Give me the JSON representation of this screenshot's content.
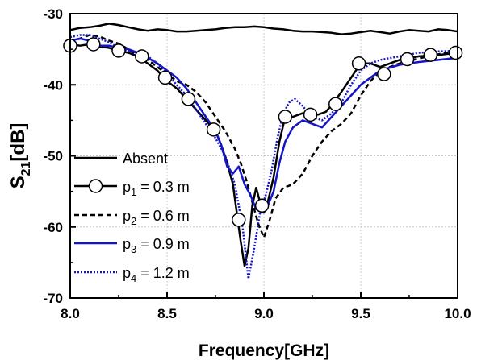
{
  "chart_data": {
    "type": "line",
    "xlabel": "Frequency[GHz]",
    "ylabel": {
      "main": "S",
      "sub": "21",
      "unit": "[dB]"
    },
    "xlim": [
      8.0,
      10.0
    ],
    "ylim": [
      -70,
      -30
    ],
    "xticks": [
      {
        "value": 8.0,
        "label": "8.0"
      },
      {
        "value": 8.5,
        "label": "8.5"
      },
      {
        "value": 9.0,
        "label": "9.0"
      },
      {
        "value": 9.5,
        "label": "9.5"
      },
      {
        "value": 10.0,
        "label": "10.0"
      }
    ],
    "yticks": [
      {
        "value": -30,
        "label": "-30"
      },
      {
        "value": -40,
        "label": "-40"
      },
      {
        "value": -50,
        "label": "-50"
      },
      {
        "value": -60,
        "label": "-60"
      },
      {
        "value": -70,
        "label": "-70"
      }
    ],
    "grid": true,
    "legend_position": "bottom-left",
    "series": [
      {
        "id": "absent",
        "label": {
          "main": "Absent",
          "sub": "",
          "rest": ""
        },
        "color": "#000000",
        "dash": "none",
        "width": 2.5,
        "marker": "none",
        "x": [
          8.0,
          8.05,
          8.1,
          8.15,
          8.2,
          8.25,
          8.3,
          8.35,
          8.4,
          8.45,
          8.5,
          8.55,
          8.6,
          8.65,
          8.7,
          8.75,
          8.8,
          8.85,
          8.9,
          8.95,
          9.0,
          9.05,
          9.1,
          9.15,
          9.2,
          9.25,
          9.3,
          9.35,
          9.4,
          9.45,
          9.5,
          9.55,
          9.6,
          9.65,
          9.7,
          9.75,
          9.8,
          9.85,
          9.9,
          9.95,
          10.0
        ],
        "y": [
          -32.3,
          -32.0,
          -31.9,
          -31.7,
          -31.4,
          -31.6,
          -31.9,
          -32.2,
          -32.4,
          -32.2,
          -32.3,
          -32.5,
          -32.5,
          -32.4,
          -32.3,
          -32.2,
          -32.0,
          -31.9,
          -31.9,
          -31.8,
          -31.9,
          -32.1,
          -32.2,
          -32.4,
          -32.5,
          -32.5,
          -32.6,
          -32.7,
          -32.9,
          -32.8,
          -32.6,
          -32.4,
          -32.6,
          -32.8,
          -32.5,
          -32.3,
          -32.4,
          -32.5,
          -32.2,
          -32.3,
          -32.5
        ]
      },
      {
        "id": "p1",
        "label": {
          "main": "p",
          "sub": "1",
          "rest": " = 0.3 m"
        },
        "color": "#000000",
        "dash": "none",
        "width": 2.5,
        "marker": "circle",
        "x": [
          8.0,
          8.05,
          8.1,
          8.15,
          8.2,
          8.25,
          8.3,
          8.35,
          8.4,
          8.45,
          8.5,
          8.55,
          8.6,
          8.65,
          8.7,
          8.75,
          8.78,
          8.81,
          8.84,
          8.86,
          8.88,
          8.9,
          8.92,
          8.94,
          8.96,
          8.98,
          9.0,
          9.02,
          9.05,
          9.08,
          9.11,
          9.15,
          9.2,
          9.24,
          9.28,
          9.32,
          9.36,
          9.4,
          9.45,
          9.5,
          9.55,
          9.6,
          9.7,
          9.8,
          9.9,
          10.0
        ],
        "y": [
          -34.3,
          -34.5,
          -34.3,
          -34.6,
          -34.8,
          -35.2,
          -35.5,
          -36.0,
          -37.0,
          -38.0,
          -39.5,
          -40.5,
          -42.0,
          -43.5,
          -45.0,
          -46.5,
          -48.5,
          -51.0,
          -54.0,
          -58.0,
          -62.0,
          -65.5,
          -63.0,
          -57.0,
          -54.5,
          -56.5,
          -58.0,
          -56.5,
          -53.0,
          -48.0,
          -44.5,
          -44.5,
          -44.0,
          -44.0,
          -44.2,
          -43.8,
          -42.5,
          -41.0,
          -39.0,
          -37.0,
          -37.0,
          -37.5,
          -36.5,
          -36.0,
          -35.8,
          -35.5
        ],
        "markers": [
          [
            8.0,
            -34.5
          ],
          [
            8.12,
            -34.3
          ],
          [
            8.25,
            -35.2
          ],
          [
            8.37,
            -36.0
          ],
          [
            8.49,
            -39.0
          ],
          [
            8.61,
            -42.0
          ],
          [
            8.74,
            -46.3
          ],
          [
            8.87,
            -59.0
          ],
          [
            8.99,
            -57.0
          ],
          [
            9.11,
            -44.5
          ],
          [
            9.24,
            -44.2
          ],
          [
            9.37,
            -42.7
          ],
          [
            9.49,
            -37.0
          ],
          [
            9.62,
            -38.5
          ],
          [
            9.74,
            -36.4
          ],
          [
            9.86,
            -35.8
          ],
          [
            9.99,
            -35.5
          ]
        ]
      },
      {
        "id": "p2",
        "label": {
          "main": "p",
          "sub": "2",
          "rest": " = 0.6 m"
        },
        "color": "#000000",
        "dash": "6,4",
        "width": 2.5,
        "marker": "none",
        "x": [
          8.0,
          8.05,
          8.1,
          8.15,
          8.2,
          8.25,
          8.3,
          8.35,
          8.4,
          8.45,
          8.5,
          8.55,
          8.6,
          8.65,
          8.7,
          8.75,
          8.8,
          8.85,
          8.88,
          8.91,
          8.94,
          8.97,
          9.0,
          9.03,
          9.06,
          9.1,
          9.15,
          9.2,
          9.25,
          9.3,
          9.35,
          9.4,
          9.45,
          9.5,
          9.55,
          9.6,
          9.7,
          9.8,
          9.9,
          10.0
        ],
        "y": [
          -34.0,
          -33.5,
          -33.0,
          -33.2,
          -33.8,
          -34.2,
          -35.0,
          -36.0,
          -36.5,
          -37.5,
          -38.5,
          -39.5,
          -40.0,
          -41.0,
          -42.5,
          -44.5,
          -46.5,
          -49.0,
          -51.0,
          -53.5,
          -56.5,
          -59.5,
          -61.5,
          -59.0,
          -56.0,
          -54.5,
          -54.0,
          -52.5,
          -50.0,
          -48.0,
          -46.5,
          -45.5,
          -44.0,
          -41.5,
          -39.5,
          -38.0,
          -37.0,
          -36.3,
          -35.7,
          -35.2
        ]
      },
      {
        "id": "p3",
        "label": {
          "main": "p",
          "sub": "3",
          "rest": " = 0.9 m"
        },
        "color": "#1515c8",
        "dash": "none",
        "width": 2.5,
        "marker": "none",
        "x": [
          8.0,
          8.05,
          8.1,
          8.15,
          8.2,
          8.25,
          8.3,
          8.35,
          8.4,
          8.45,
          8.5,
          8.55,
          8.6,
          8.65,
          8.7,
          8.75,
          8.78,
          8.81,
          8.84,
          8.87,
          8.9,
          8.93,
          8.96,
          8.99,
          9.02,
          9.05,
          9.08,
          9.11,
          9.15,
          9.2,
          9.25,
          9.3,
          9.35,
          9.4,
          9.45,
          9.5,
          9.55,
          9.6,
          9.7,
          9.8,
          9.9,
          10.0
        ],
        "y": [
          -33.8,
          -33.5,
          -33.8,
          -34.5,
          -34.5,
          -34.8,
          -35.0,
          -35.5,
          -36.2,
          -37.0,
          -38.0,
          -39.0,
          -40.5,
          -42.5,
          -44.5,
          -46.5,
          -48.5,
          -51.5,
          -52.5,
          -51.5,
          -54.0,
          -55.5,
          -57.5,
          -58.0,
          -57.0,
          -55.0,
          -51.0,
          -48.0,
          -46.0,
          -45.0,
          -45.5,
          -46.0,
          -44.5,
          -43.0,
          -41.5,
          -40.0,
          -39.0,
          -38.0,
          -37.2,
          -36.8,
          -36.5,
          -36.2
        ]
      },
      {
        "id": "p4",
        "label": {
          "main": "p",
          "sub": "4",
          "rest": " = 1.2 m"
        },
        "color": "#1515c8",
        "dash": "2,2",
        "width": 2.5,
        "marker": "none",
        "x": [
          8.0,
          8.05,
          8.1,
          8.15,
          8.2,
          8.25,
          8.3,
          8.35,
          8.4,
          8.45,
          8.5,
          8.55,
          8.6,
          8.65,
          8.7,
          8.75,
          8.8,
          8.85,
          8.89,
          8.92,
          8.95,
          8.98,
          9.01,
          9.04,
          9.07,
          9.1,
          9.13,
          9.16,
          9.2,
          9.25,
          9.3,
          9.35,
          9.4,
          9.45,
          9.5,
          9.55,
          9.6,
          9.7,
          9.8,
          9.9,
          10.0
        ],
        "y": [
          -33.3,
          -33.0,
          -33.0,
          -33.5,
          -34.0,
          -34.8,
          -35.2,
          -35.5,
          -36.0,
          -37.0,
          -38.5,
          -40.0,
          -41.5,
          -43.5,
          -45.5,
          -47.5,
          -50.0,
          -54.0,
          -60.0,
          -67.3,
          -63.0,
          -58.0,
          -55.5,
          -52.0,
          -47.5,
          -44.0,
          -42.5,
          -42.0,
          -43.0,
          -44.5,
          -45.0,
          -44.0,
          -42.5,
          -40.0,
          -38.0,
          -37.0,
          -36.5,
          -36.0,
          -35.5,
          -35.3,
          -35.2
        ]
      }
    ]
  }
}
